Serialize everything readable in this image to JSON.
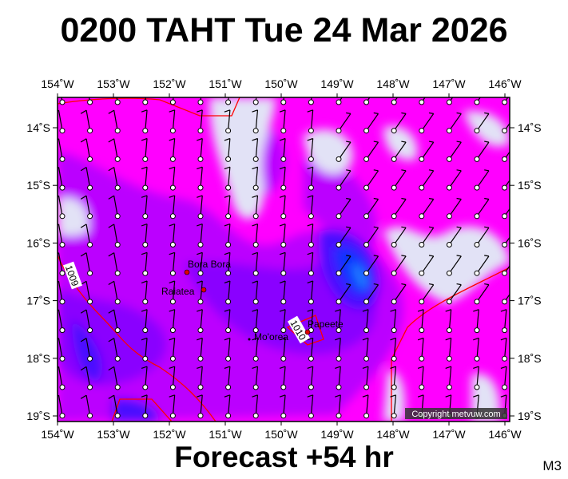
{
  "header": {
    "title": "0200 TAHT Tue 24 Mar 2026"
  },
  "footer": {
    "forecast": "Forecast +54 hr",
    "model": "M3",
    "copyright": "Copyright metvuw.com"
  },
  "axes": {
    "lon_labels": [
      "154˚W",
      "153˚W",
      "152˚W",
      "151˚W",
      "150˚W",
      "149˚W",
      "148˚W",
      "147˚W",
      "146˚W"
    ],
    "lat_labels": [
      "14˚S",
      "15˚S",
      "16˚S",
      "17˚S",
      "18˚S",
      "19˚S"
    ]
  },
  "places": [
    {
      "name": "Bora Bora"
    },
    {
      "name": "Raiatea"
    },
    {
      "name": "Mo'orea"
    },
    {
      "name": "Papeete"
    }
  ],
  "isobars": [
    {
      "label": "1009"
    },
    {
      "label": "1010"
    }
  ],
  "colors": {
    "magenta": "#ff00ff",
    "violet": "#bb00ff",
    "purple": "#8a00ff",
    "blue": "#4a10ff",
    "deep_blue": "#1030ff",
    "light": "#e2e2f6",
    "isobar": "#ff0000"
  }
}
